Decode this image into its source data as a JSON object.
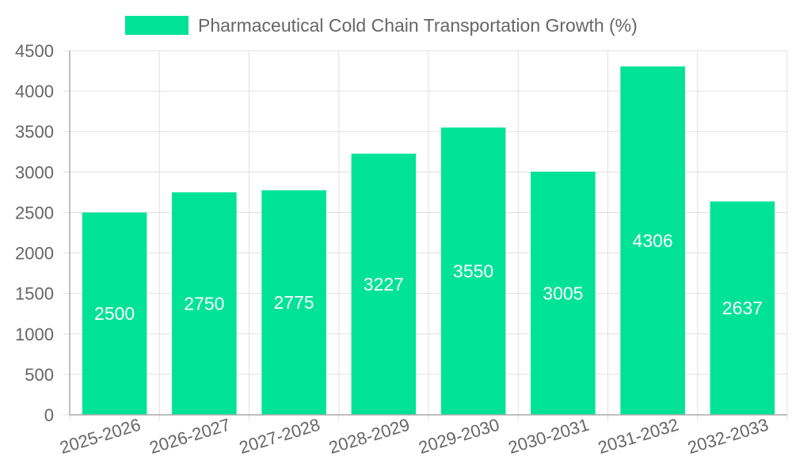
{
  "chart_data": {
    "type": "bar",
    "title": "",
    "legend": [
      {
        "label": "Pharmaceutical Cold Chain Transportation Growth (%)",
        "color": "#00e396"
      }
    ],
    "legend_position": "top",
    "categories": [
      "2025-2026",
      "2026-2027",
      "2027-2028",
      "2028-2029",
      "2029-2030",
      "2030-2031",
      "2031-2032",
      "2032-2033"
    ],
    "series": [
      {
        "name": "Pharmaceutical Cold Chain Transportation Growth (%)",
        "values": [
          2500,
          2750,
          2775,
          3227,
          3550,
          3005,
          4306,
          2637
        ],
        "color": "#00e396"
      }
    ],
    "xlabel": "",
    "ylabel": "",
    "ylim": [
      0,
      4500
    ],
    "yticks": [
      0,
      500,
      1000,
      1500,
      2000,
      2500,
      3000,
      3500,
      4000,
      4500
    ],
    "grid": true,
    "data_labels": true
  },
  "colors": {
    "bar": "#00e396",
    "grid": "#e0e0e0",
    "axis": "#aaaaaa",
    "text": "#666666",
    "label": "#ffffff"
  }
}
